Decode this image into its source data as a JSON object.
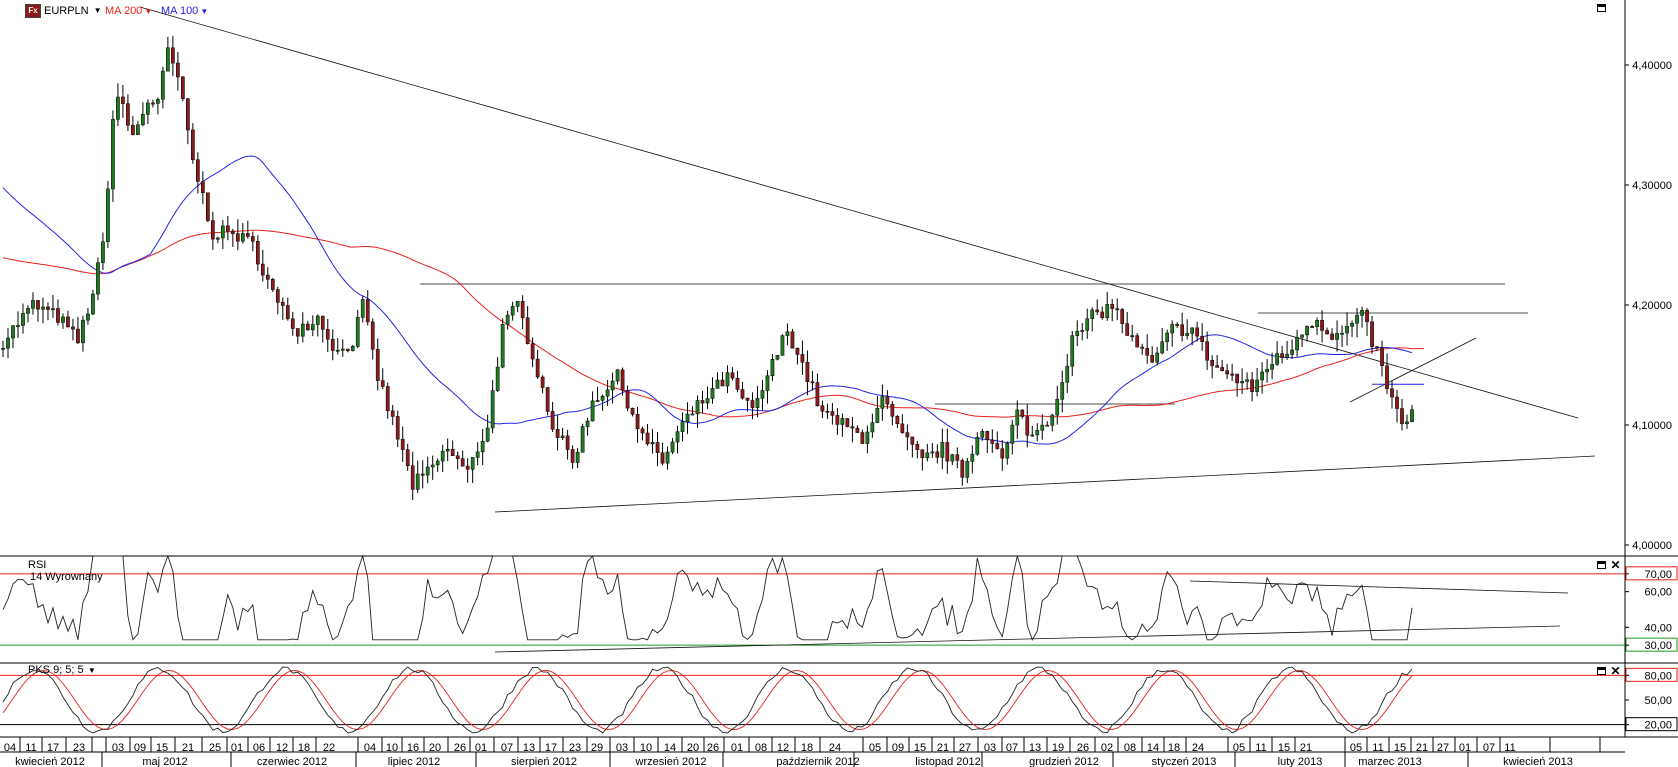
{
  "header": {
    "fx_icon": "Fx",
    "symbol": "EURPLN",
    "ma200_label": "MA 200",
    "ma100_label": "MA 100",
    "dropdown_icon": "triangle-down-icon"
  },
  "panels": {
    "rsi": {
      "title": "RSI",
      "subtitle": "14 Wyrownany"
    },
    "pks": {
      "title": "PKS 9; 5; 5"
    }
  },
  "colors": {
    "ma200": "#e8211c",
    "ma100": "#2323e6",
    "bull_fill": "#1f7a1f",
    "bear_fill": "#8b1a1a",
    "rsi_upper": "#e8211c",
    "rsi_lower": "#1f9a1f",
    "pks_signal": "#e8211c"
  },
  "chart_data": [
    {
      "type": "line",
      "panel": "price",
      "candles": "daily OHLC, drawn",
      "y_ticks": [
        "4,40000",
        "4,30000",
        "4,20000",
        "4,10000",
        "4,00000"
      ],
      "y_tick_values": [
        4.4,
        4.3,
        4.2,
        4.1,
        4.0
      ],
      "ylim": [
        3.99,
        4.435
      ],
      "series": [
        {
          "name": "MA 200",
          "key": "ma200"
        },
        {
          "name": "MA 100",
          "key": "ma100"
        }
      ]
    },
    {
      "type": "line",
      "panel": "rsi",
      "title": "RSI",
      "y_ticks": [
        "70,00",
        "60,00",
        "40,00",
        "30,00"
      ],
      "y_tick_values": [
        70,
        60,
        40,
        30
      ],
      "ylim": [
        20,
        80
      ],
      "levels": [
        70,
        30
      ]
    },
    {
      "type": "line",
      "panel": "pks",
      "title": "PKS 9; 5; 5",
      "y_ticks": [
        "80,00",
        "50,00",
        "20,00"
      ],
      "y_tick_values": [
        80,
        50,
        20
      ],
      "ylim": [
        5,
        95
      ],
      "levels": [
        80,
        20
      ]
    }
  ],
  "x_axis": {
    "day_labels": [
      "04",
      "11",
      "17",
      "23",
      "03",
      "09",
      "15",
      "21",
      "25",
      "01",
      "06",
      "12",
      "18",
      "22",
      "04",
      "10",
      "16",
      "20",
      "26",
      "01",
      "07",
      "13",
      "17",
      "23",
      "29",
      "03",
      "10",
      "14",
      "20",
      "26",
      "01",
      "08",
      "12",
      "18",
      "24",
      "05",
      "09",
      "15",
      "21",
      "27",
      "03",
      "07",
      "13",
      "19",
      "26",
      "02",
      "08",
      "14",
      "18",
      "24",
      "05",
      "11",
      "15",
      "21",
      "05",
      "11",
      "15",
      "21",
      "27",
      "01",
      "07",
      "11"
    ],
    "month_labels": [
      "kwiecień 2012",
      "maj 2012",
      "czerwiec 2012",
      "lipiec 2012",
      "sierpień 2012",
      "wrzesień 2012",
      "październik 2012",
      "listopad 2012",
      "grudzień 2012",
      "styczeń 2013",
      "luty 2013",
      "marzec 2013",
      "kwiecień 2013"
    ]
  }
}
